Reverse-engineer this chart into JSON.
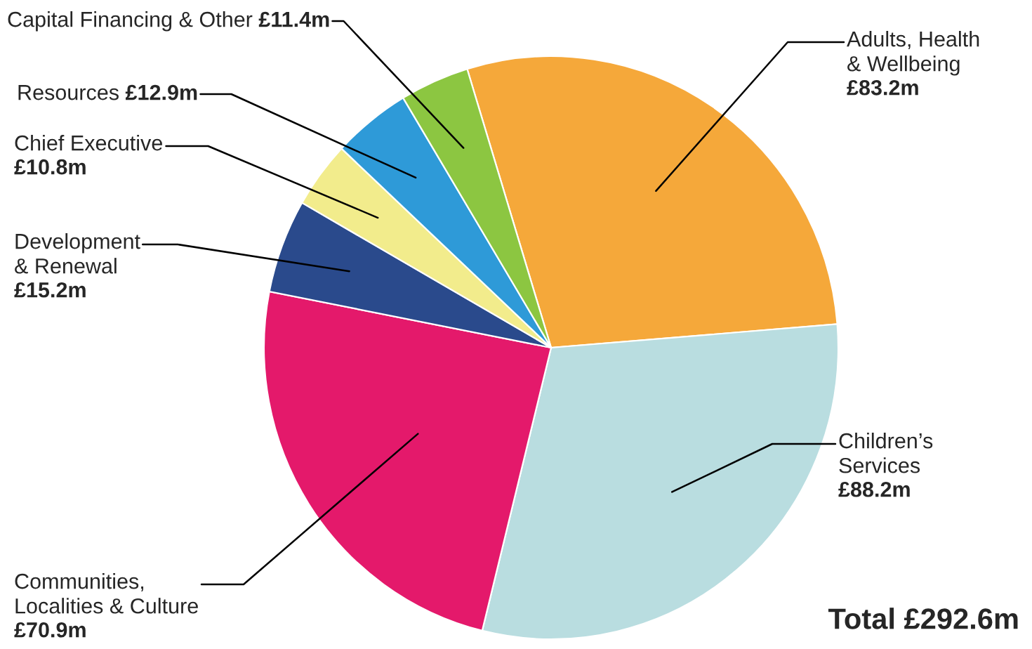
{
  "chart_data": {
    "type": "pie",
    "categories": [
      "Adults, Health\n& Wellbeing",
      "Children’s\nServices",
      "Communities,\nLocalities & Culture",
      "Development\n& Renewal",
      "Chief Executive",
      "Resources",
      "Capital Financing & Other"
    ],
    "values": [
      83.2,
      88.2,
      70.9,
      15.2,
      10.8,
      12.9,
      11.4
    ],
    "value_labels": [
      "£83.2m",
      "£88.2m",
      "£70.9m",
      "£15.2m",
      "£10.8m",
      "£12.9m",
      "£11.4m"
    ],
    "colors": [
      "#f5a83a",
      "#b9dde0",
      "#e4196b",
      "#2a4a8c",
      "#f2ec8c",
      "#2e9ad8",
      "#8cc641"
    ],
    "annotations": [
      "Total £292.6m"
    ],
    "legend": false
  }
}
